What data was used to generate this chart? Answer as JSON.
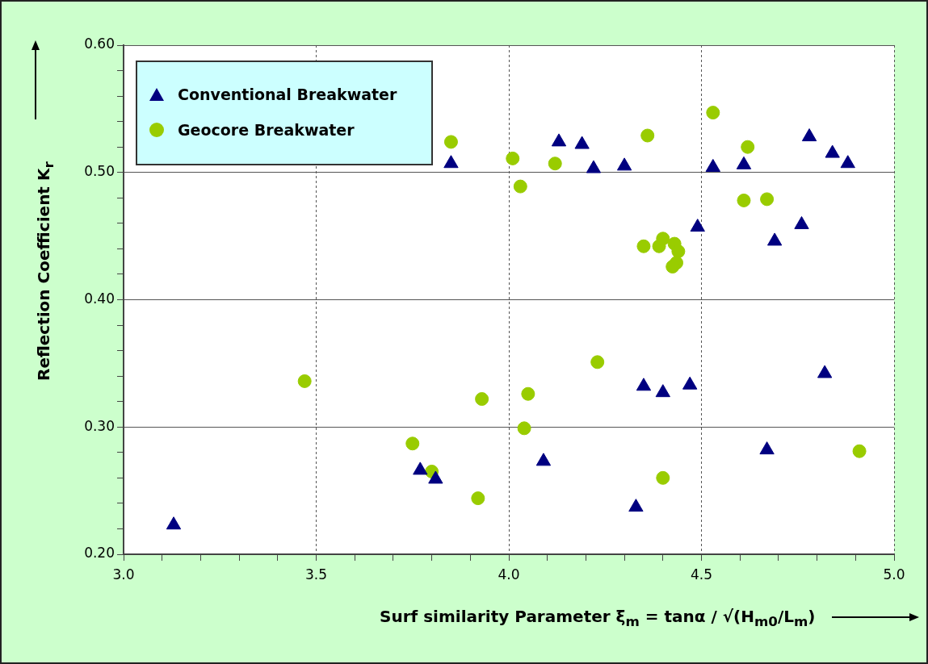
{
  "chart_data": {
    "type": "scatter",
    "xlabel": "Surf similarity Parameter ξ$_{m}$ = tanα / √(H$_{m0}$/L$_{m}$)",
    "ylabel": "Reflection Coefficient K$_{r}$",
    "xlim": [
      3.0,
      5.0
    ],
    "xticks": [
      {
        "value": 3.0,
        "label": "3.0"
      },
      {
        "value": 3.1,
        "label": null
      },
      {
        "value": 3.2,
        "label": null
      },
      {
        "value": 3.3,
        "label": null
      },
      {
        "value": 3.4,
        "label": null
      },
      {
        "value": 3.5,
        "label": "3.5"
      },
      {
        "value": 3.6,
        "label": null
      },
      {
        "value": 3.7,
        "label": null
      },
      {
        "value": 3.8,
        "label": null
      },
      {
        "value": 3.9,
        "label": null
      },
      {
        "value": 4.0,
        "label": "4.0"
      },
      {
        "value": 4.1,
        "label": null
      },
      {
        "value": 4.2,
        "label": null
      },
      {
        "value": 4.3,
        "label": null
      },
      {
        "value": 4.4,
        "label": null
      },
      {
        "value": 4.5,
        "label": "4.5"
      },
      {
        "value": 4.6,
        "label": null
      },
      {
        "value": 4.7,
        "label": null
      },
      {
        "value": 4.8,
        "label": null
      },
      {
        "value": 4.9,
        "label": null
      },
      {
        "value": 5.0,
        "label": "5.0"
      }
    ],
    "ylim": [
      0.2,
      0.6
    ],
    "yticks": [
      {
        "value": 0.2,
        "label": "0.20"
      },
      {
        "value": 0.22,
        "label": null
      },
      {
        "value": 0.24,
        "label": null
      },
      {
        "value": 0.26,
        "label": null
      },
      {
        "value": 0.28,
        "label": null
      },
      {
        "value": 0.3,
        "label": "0.30"
      },
      {
        "value": 0.32,
        "label": null
      },
      {
        "value": 0.34,
        "label": null
      },
      {
        "value": 0.36,
        "label": null
      },
      {
        "value": 0.38,
        "label": null
      },
      {
        "value": 0.4,
        "label": "0.40"
      },
      {
        "value": 0.42,
        "label": null
      },
      {
        "value": 0.44,
        "label": null
      },
      {
        "value": 0.46,
        "label": null
      },
      {
        "value": 0.48,
        "label": null
      },
      {
        "value": 0.5,
        "label": "0.50"
      },
      {
        "value": 0.52,
        "label": null
      },
      {
        "value": 0.54,
        "label": null
      },
      {
        "value": 0.56,
        "label": null
      },
      {
        "value": 0.58,
        "label": null
      },
      {
        "value": 0.6,
        "label": "0.60"
      }
    ],
    "grid": true,
    "legend": "top left",
    "series": [
      {
        "name": "Conventional Breakwater",
        "color": "#000080",
        "marker": "triangle",
        "x": [
          3.13,
          3.77,
          3.81,
          3.85,
          4.09,
          4.13,
          4.19,
          4.22,
          4.3,
          4.33,
          4.35,
          4.4,
          4.47,
          4.49,
          4.53,
          4.61,
          4.67,
          4.69,
          4.76,
          4.78,
          4.82,
          4.84,
          4.88
        ],
        "values": [
          0.223,
          0.266,
          0.259,
          0.507,
          0.273,
          0.524,
          0.522,
          0.503,
          0.505,
          0.237,
          0.332,
          0.327,
          0.333,
          0.457,
          0.504,
          0.506,
          0.282,
          0.446,
          0.459,
          0.528,
          0.342,
          0.515,
          0.507
        ]
      },
      {
        "name": "Geocore Breakwater",
        "color": "#99cc00",
        "marker": "circle",
        "x": [
          3.47,
          3.75,
          3.8,
          3.85,
          3.92,
          3.93,
          4.01,
          4.03,
          4.04,
          4.05,
          4.12,
          4.23,
          4.36,
          4.35,
          4.39,
          4.4,
          4.43,
          4.44,
          4.435,
          4.425,
          4.4,
          4.53,
          4.61,
          4.62,
          4.67,
          4.91
        ],
        "values": [
          0.336,
          0.287,
          0.265,
          0.524,
          0.244,
          0.322,
          0.511,
          0.489,
          0.299,
          0.326,
          0.507,
          0.351,
          0.529,
          0.442,
          0.442,
          0.448,
          0.444,
          0.438,
          0.429,
          0.426,
          0.26,
          0.547,
          0.478,
          0.52,
          0.479,
          0.281
        ]
      }
    ]
  }
}
